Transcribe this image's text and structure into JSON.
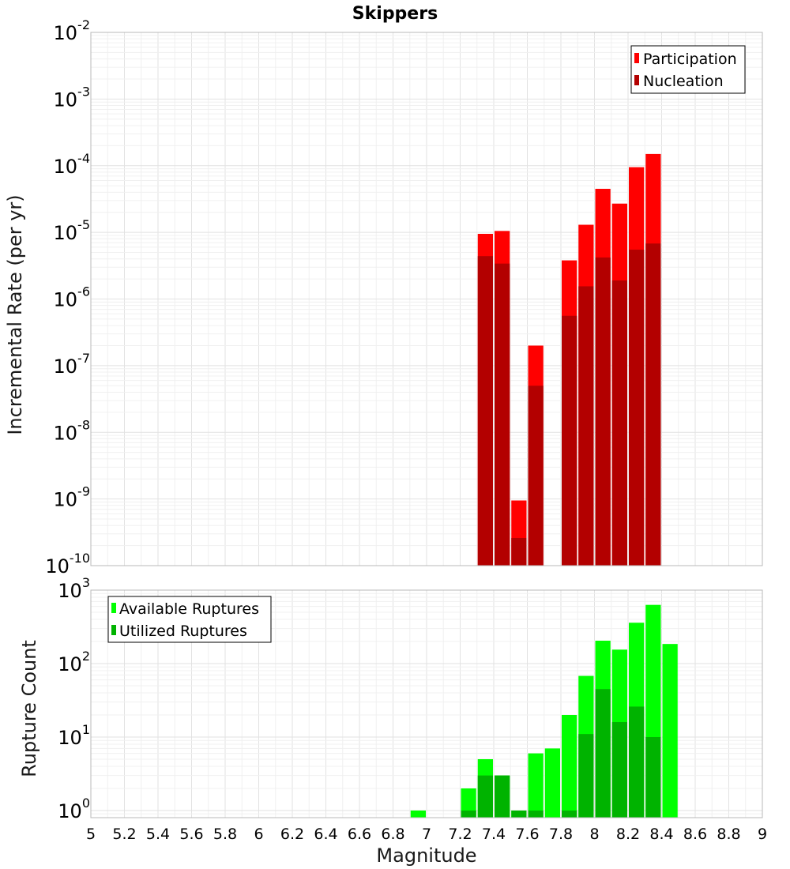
{
  "chart_data": [
    {
      "type": "bar",
      "title": "Skippers",
      "xlabel": "",
      "ylabel": "Incremental Rate (per yr)",
      "xlim": [
        5,
        9
      ],
      "ylim": [
        1e-10,
        0.01
      ],
      "y_scale": "log",
      "grid": true,
      "overlay": true,
      "legend_position": "top-right",
      "x": [
        7.35,
        7.45,
        7.55,
        7.65,
        7.85,
        7.95,
        8.05,
        8.15,
        8.25,
        8.35
      ],
      "series": [
        {
          "name": "Participation",
          "color": "#ff0000",
          "values": [
            9.5e-06,
            1.05e-05,
            9.5e-10,
            2e-07,
            3.8e-06,
            1.3e-05,
            4.5e-05,
            2.7e-05,
            9.5e-05,
            0.00015
          ]
        },
        {
          "name": "Nucleation",
          "color": "#b30000",
          "values": [
            4.4e-06,
            3.4e-06,
            2.6e-10,
            5e-08,
            5.6e-07,
            1.55e-06,
            4.2e-06,
            1.9e-06,
            5.5e-06,
            6.8e-06
          ]
        }
      ]
    },
    {
      "type": "bar",
      "title": "",
      "xlabel": "Magnitude",
      "ylabel": "Rupture Count",
      "xlim": [
        5,
        9
      ],
      "ylim": [
        0.8,
        1000
      ],
      "y_scale": "log",
      "grid": true,
      "overlay": true,
      "legend_position": "top-left",
      "x": [
        6.95,
        7.25,
        7.35,
        7.45,
        7.55,
        7.65,
        7.75,
        7.85,
        7.95,
        8.05,
        8.15,
        8.25,
        8.35,
        8.45
      ],
      "series": [
        {
          "name": "Available Ruptures",
          "color": "#00ff00",
          "values": [
            1,
            2,
            5,
            3,
            1,
            6,
            7,
            20,
            68,
            205,
            155,
            360,
            630,
            185
          ]
        },
        {
          "name": "Utilized Ruptures",
          "color": "#00b300",
          "values": [
            0,
            1,
            3,
            3,
            1,
            1,
            0,
            1,
            11,
            45,
            16,
            26,
            10,
            0
          ]
        }
      ]
    }
  ],
  "axes": {
    "top_y_ticks": [
      {
        "base": "10",
        "exp": "-2"
      },
      {
        "base": "10",
        "exp": "-3"
      },
      {
        "base": "10",
        "exp": "-4"
      },
      {
        "base": "10",
        "exp": "-5"
      },
      {
        "base": "10",
        "exp": "-6"
      },
      {
        "base": "10",
        "exp": "-7"
      },
      {
        "base": "10",
        "exp": "-8"
      },
      {
        "base": "10",
        "exp": "-9"
      },
      {
        "base": "10",
        "exp": "-10"
      }
    ],
    "bottom_y_ticks": [
      {
        "base": "10",
        "exp": "3"
      },
      {
        "base": "10",
        "exp": "2"
      },
      {
        "base": "10",
        "exp": "1"
      },
      {
        "base": "10",
        "exp": "0"
      }
    ],
    "x_ticks": [
      "5",
      "5.2",
      "5.4",
      "5.6",
      "5.8",
      "6",
      "6.2",
      "6.4",
      "6.6",
      "6.8",
      "7",
      "7.2",
      "7.4",
      "7.6",
      "7.8",
      "8",
      "8.2",
      "8.4",
      "8.6",
      "8.8",
      "9"
    ]
  }
}
